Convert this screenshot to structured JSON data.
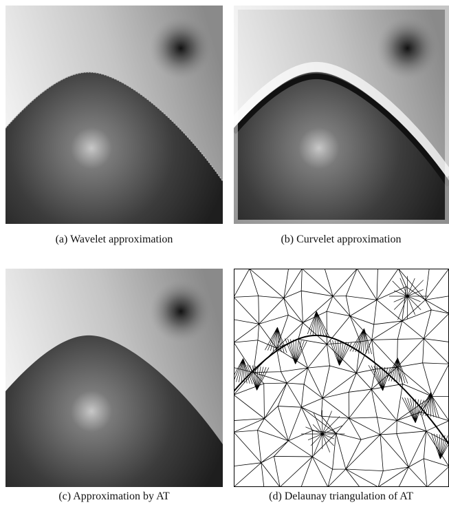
{
  "figure": {
    "subfigures": [
      {
        "caption": "(a) Wavelet approximation"
      },
      {
        "caption": "(b) Curvelet approximation"
      },
      {
        "caption": "(c) Approximation by AT"
      },
      {
        "caption": "(d) Delaunay triangulation of AT"
      }
    ]
  }
}
